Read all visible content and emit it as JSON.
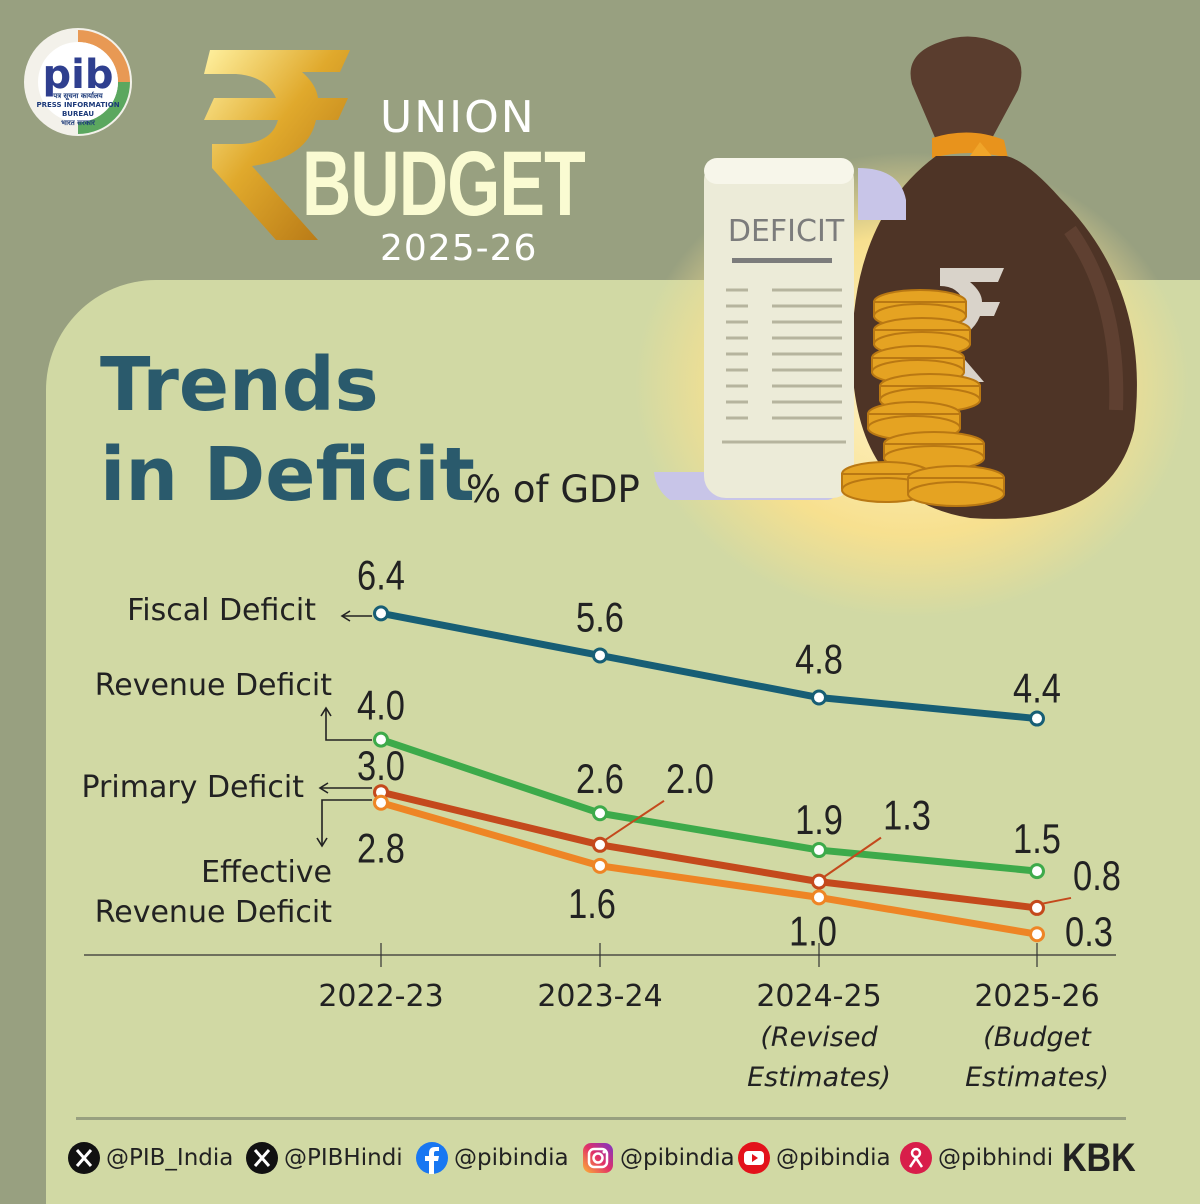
{
  "header": {
    "pib_label": "pib",
    "pib_subtitle_1": "पत्र सूचना कार्यालय",
    "pib_subtitle_2": "PRESS INFORMATION BUREAU",
    "pib_subtitle_3": "भारत सरकार",
    "union": "UNION",
    "budget": "BUDGET",
    "year": "2025-26",
    "deficit_document_label": "DEFICIT"
  },
  "title": {
    "line1": "Trends",
    "line2": "in Deficit",
    "unit": "% of GDP"
  },
  "chart_data": {
    "type": "line",
    "categories": [
      "2022-23",
      "2023-24",
      "2024-25",
      "2025-26"
    ],
    "category_notes": [
      "",
      "",
      "(Revised Estimates)",
      "(Budget Estimates)"
    ],
    "category_note_lines": [
      [],
      [],
      [
        "(Revised",
        "Estimates)"
      ],
      [
        "(Budget",
        "Estimates)"
      ]
    ],
    "series": [
      {
        "name": "Fiscal Deficit",
        "values": [
          6.4,
          5.6,
          4.8,
          4.4
        ],
        "color": "#175e75"
      },
      {
        "name": "Revenue Deficit",
        "values": [
          4.0,
          2.6,
          1.9,
          1.5
        ],
        "color": "#3daa4a"
      },
      {
        "name": "Primary Deficit",
        "values": [
          3.0,
          2.0,
          1.3,
          0.8
        ],
        "color": "#c4491c"
      },
      {
        "name": "Effective Revenue Deficit",
        "values": [
          2.8,
          1.6,
          1.0,
          0.3
        ],
        "color": "#ee8525"
      }
    ],
    "series_label_lines": [
      [
        "Fiscal Deficit"
      ],
      [
        "Revenue Deficit"
      ],
      [
        "Primary Deficit"
      ],
      [
        "Effective",
        "Revenue Deficit"
      ]
    ],
    "ylim": [
      0,
      7
    ],
    "grid": false,
    "legend": "left-inline"
  },
  "footer": {
    "socials": [
      {
        "icon": "x-icon",
        "handle": "@PIB_India"
      },
      {
        "icon": "x-icon",
        "handle": "@PIBHindi"
      },
      {
        "icon": "facebook-icon",
        "handle": "@pibindia"
      },
      {
        "icon": "instagram-icon",
        "handle": "@pibindia"
      },
      {
        "icon": "youtube-icon",
        "handle": "@pibindia"
      },
      {
        "icon": "kooapp-icon",
        "handle": "@pibhindi"
      }
    ],
    "credit": "KBK"
  }
}
